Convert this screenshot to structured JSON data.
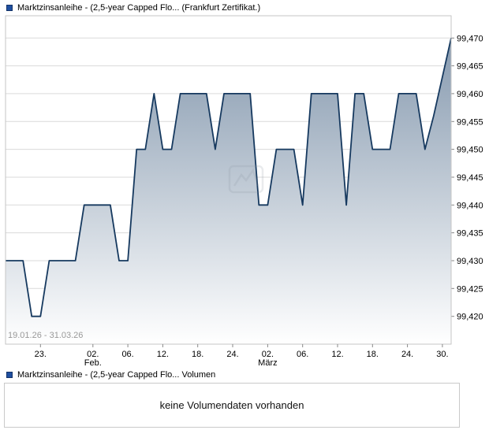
{
  "header": {
    "legend_label": "Marktzinsanleihe - (2,5-year Capped Flo... (Frankfurt Zertifikat.)"
  },
  "chart": {
    "date_range_label": "19.01.26 - 31.03.26"
  },
  "chart_data": {
    "type": "area",
    "title": "Marktzinsanleihe - (2,5-year Capped Flo... (Frankfurt Zertifikat.)",
    "x_start": "19.01.26",
    "x_end": "31.03.26",
    "values": [
      99430,
      99430,
      99430,
      99420,
      99420,
      99430,
      99430,
      99430,
      99430,
      99440,
      99440,
      99440,
      99440,
      99430,
      99430,
      99450,
      99450,
      99460,
      99450,
      99450,
      99460,
      99460,
      99460,
      99460,
      99450,
      99460,
      99460,
      99460,
      99460,
      99440,
      99440,
      99450,
      99450,
      99450,
      99440,
      99460,
      99460,
      99460,
      99460,
      99440,
      99460,
      99460,
      99450,
      99450,
      99450,
      99460,
      99460,
      99460,
      99450,
      99456,
      99463,
      99470
    ],
    "ylim": [
      99415,
      99474
    ],
    "grid": true,
    "legend_position": "top-left",
    "y_ticks": [
      {
        "value": 99470,
        "label": "99,470"
      },
      {
        "value": 99465,
        "label": "99,465"
      },
      {
        "value": 99460,
        "label": "99,460"
      },
      {
        "value": 99455,
        "label": "99,455"
      },
      {
        "value": 99450,
        "label": "99,450"
      },
      {
        "value": 99445,
        "label": "99,445"
      },
      {
        "value": 99440,
        "label": "99,440"
      },
      {
        "value": 99435,
        "label": "99,435"
      },
      {
        "value": 99430,
        "label": "99,430"
      },
      {
        "value": 99425,
        "label": "99,425"
      },
      {
        "value": 99420,
        "label": "99,420"
      }
    ],
    "x_ticks": [
      {
        "index": 4,
        "label": "23.",
        "sublabel": ""
      },
      {
        "index": 10,
        "label": "02.",
        "sublabel": "Feb."
      },
      {
        "index": 14,
        "label": "06.",
        "sublabel": ""
      },
      {
        "index": 18,
        "label": "12.",
        "sublabel": ""
      },
      {
        "index": 22,
        "label": "18.",
        "sublabel": ""
      },
      {
        "index": 26,
        "label": "24.",
        "sublabel": ""
      },
      {
        "index": 30,
        "label": "02.",
        "sublabel": "März"
      },
      {
        "index": 34,
        "label": "06.",
        "sublabel": ""
      },
      {
        "index": 38,
        "label": "12.",
        "sublabel": ""
      },
      {
        "index": 42,
        "label": "18.",
        "sublabel": ""
      },
      {
        "index": 46,
        "label": "24.",
        "sublabel": ""
      },
      {
        "index": 50,
        "label": "30.",
        "sublabel": ""
      }
    ]
  },
  "volume": {
    "legend_label": "Marktzinsanleihe - (2,5-year Capped Flo... Volumen",
    "empty_message": "keine Volumendaten vorhanden"
  },
  "colors": {
    "line": "#16395f",
    "fill_top": "#7d92a9",
    "fill_bottom": "#ffffff",
    "legend_swatch": "#1f4fa0",
    "grid_line": "#dadada",
    "plot_border": "#c6c6c6",
    "tick": "#888888",
    "axis_text": "#000000",
    "date_range_text": "#999999",
    "watermark": "#8a94a0"
  }
}
